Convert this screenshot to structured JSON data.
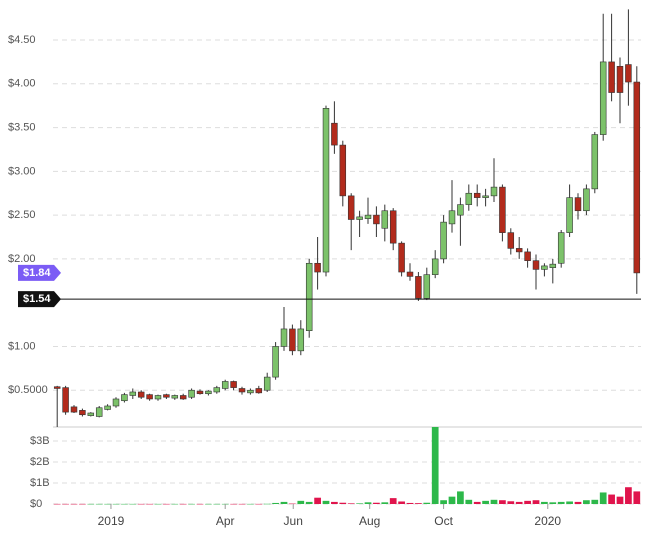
{
  "chart_data": [
    {
      "type": "candlestick",
      "x": [
        0,
        1,
        2,
        3,
        4,
        5,
        6,
        7,
        8,
        9,
        10,
        11,
        12,
        13,
        14,
        15,
        16,
        17,
        18,
        19,
        20,
        21,
        22,
        23,
        24,
        25,
        26,
        27,
        28,
        29,
        30,
        31,
        32,
        33,
        34,
        35,
        36,
        37,
        38,
        39,
        40,
        41,
        42,
        43,
        44,
        45,
        46,
        47,
        48,
        49,
        50,
        51,
        52,
        53,
        54,
        55,
        56,
        57,
        58,
        59,
        60,
        61,
        62,
        63,
        64,
        65,
        66,
        67,
        68,
        69
      ],
      "open": [
        0.54,
        0.53,
        0.31,
        0.27,
        0.21,
        0.2,
        0.28,
        0.32,
        0.38,
        0.44,
        0.48,
        0.45,
        0.4,
        0.45,
        0.41,
        0.44,
        0.42,
        0.49,
        0.46,
        0.48,
        0.52,
        0.6,
        0.52,
        0.47,
        0.52,
        0.5,
        0.65,
        1.0,
        1.2,
        0.95,
        1.18,
        1.95,
        1.85,
        3.55,
        3.3,
        2.72,
        2.45,
        2.46,
        2.5,
        2.35,
        2.55,
        2.18,
        1.85,
        1.8,
        1.55,
        1.82,
        2.0,
        2.4,
        2.5,
        2.62,
        2.75,
        2.7,
        2.72,
        2.82,
        2.3,
        2.12,
        2.08,
        1.98,
        1.88,
        1.9,
        1.95,
        2.3,
        2.7,
        2.55,
        2.8,
        3.42,
        4.25,
        4.2,
        4.22,
        4.02
      ],
      "high": [
        0.55,
        0.55,
        0.33,
        0.29,
        0.25,
        0.32,
        0.34,
        0.42,
        0.47,
        0.52,
        0.5,
        0.46,
        0.45,
        0.46,
        0.45,
        0.46,
        0.52,
        0.51,
        0.5,
        0.55,
        0.62,
        0.61,
        0.54,
        0.52,
        0.55,
        0.7,
        1.05,
        1.45,
        1.25,
        1.3,
        2.0,
        2.25,
        3.75,
        3.8,
        3.35,
        2.75,
        2.55,
        2.7,
        2.6,
        2.62,
        2.58,
        2.2,
        1.95,
        1.85,
        1.9,
        2.1,
        2.5,
        2.9,
        2.7,
        2.85,
        2.85,
        2.8,
        3.15,
        2.85,
        2.35,
        2.25,
        2.12,
        2.05,
        1.95,
        2.0,
        2.33,
        2.85,
        2.75,
        2.85,
        3.45,
        4.8,
        4.8,
        4.3,
        4.85,
        4.2
      ],
      "low": [
        0.08,
        0.22,
        0.24,
        0.2,
        0.2,
        0.19,
        0.27,
        0.3,
        0.36,
        0.4,
        0.4,
        0.38,
        0.38,
        0.4,
        0.39,
        0.39,
        0.4,
        0.45,
        0.44,
        0.46,
        0.5,
        0.5,
        0.45,
        0.45,
        0.46,
        0.48,
        0.62,
        0.95,
        0.9,
        0.9,
        1.1,
        1.65,
        1.8,
        3.2,
        2.6,
        2.1,
        2.25,
        2.4,
        2.25,
        2.2,
        2.1,
        1.8,
        1.75,
        1.52,
        1.53,
        1.78,
        1.95,
        2.3,
        2.15,
        2.55,
        2.6,
        2.6,
        2.65,
        2.2,
        2.05,
        2.0,
        1.9,
        1.65,
        1.8,
        1.72,
        1.9,
        2.25,
        2.45,
        2.5,
        2.75,
        3.35,
        3.8,
        3.55,
        3.75,
        1.6
      ],
      "close": [
        0.52,
        0.25,
        0.25,
        0.22,
        0.24,
        0.3,
        0.32,
        0.4,
        0.45,
        0.48,
        0.42,
        0.4,
        0.44,
        0.42,
        0.44,
        0.4,
        0.5,
        0.46,
        0.49,
        0.53,
        0.6,
        0.53,
        0.48,
        0.5,
        0.47,
        0.65,
        1.0,
        1.2,
        0.95,
        1.2,
        1.95,
        1.85,
        3.72,
        3.3,
        2.72,
        2.45,
        2.48,
        2.5,
        2.4,
        2.55,
        2.18,
        1.85,
        1.8,
        1.55,
        1.82,
        2.0,
        2.42,
        2.55,
        2.62,
        2.75,
        2.7,
        2.72,
        2.82,
        2.3,
        2.12,
        2.08,
        1.98,
        1.88,
        1.92,
        1.94,
        2.3,
        2.7,
        2.55,
        2.8,
        3.42,
        4.25,
        3.9,
        3.9,
        4.02,
        1.84
      ],
      "up_color": "#7cc26a",
      "down_color": "#b22b1c",
      "xlim": [
        -0.5,
        69.5
      ],
      "ylim": [
        0.08,
        4.9
      ],
      "yticks": [
        {
          "value": 0.5,
          "label": "$0.5000"
        },
        {
          "value": 1,
          "label": "$1.00"
        },
        {
          "value": 2,
          "label": "$2.00"
        },
        {
          "value": 2.5,
          "label": "$2.50"
        },
        {
          "value": 3,
          "label": "$3.00"
        },
        {
          "value": 3.5,
          "label": "$3.50"
        },
        {
          "value": 4,
          "label": "$4.00"
        },
        {
          "value": 4.5,
          "label": "$4.50"
        }
      ],
      "grid": true,
      "price_lines": [
        {
          "value": 1.84,
          "label": "$1.84",
          "color": "#7b5cf5",
          "line": false
        },
        {
          "value": 1.54,
          "label": "$1.54",
          "color": "#111111",
          "line": true
        }
      ]
    },
    {
      "type": "bar",
      "x": [
        0,
        1,
        2,
        3,
        4,
        5,
        6,
        7,
        8,
        9,
        10,
        11,
        12,
        13,
        14,
        15,
        16,
        17,
        18,
        19,
        20,
        21,
        22,
        23,
        24,
        25,
        26,
        27,
        28,
        29,
        30,
        31,
        32,
        33,
        34,
        35,
        36,
        37,
        38,
        39,
        40,
        41,
        42,
        43,
        44,
        45,
        46,
        47,
        48,
        49,
        50,
        51,
        52,
        53,
        54,
        55,
        56,
        57,
        58,
        59,
        60,
        61,
        62,
        63,
        64,
        65,
        66,
        67,
        68,
        69
      ],
      "values": [
        5000000,
        5000000,
        5000000,
        5000000,
        5000000,
        5000000,
        5000000,
        5000000,
        5000000,
        5000000,
        5000000,
        5000000,
        5000000,
        5000000,
        5000000,
        5000000,
        5000000,
        5000000,
        5000000,
        5000000,
        5000000,
        5000000,
        5000000,
        5000000,
        5000000,
        10000000,
        50000000,
        100000000,
        20000000,
        150000000,
        100000000,
        300000000,
        150000000,
        100000000,
        60000000,
        30000000,
        30000000,
        80000000,
        60000000,
        80000000,
        280000000,
        120000000,
        50000000,
        40000000,
        60000000,
        3670000000,
        180000000,
        350000000,
        600000000,
        200000000,
        100000000,
        150000000,
        200000000,
        180000000,
        130000000,
        100000000,
        150000000,
        180000000,
        100000000,
        80000000,
        100000000,
        120000000,
        100000000,
        180000000,
        200000000,
        550000000,
        450000000,
        350000000,
        800000000,
        600000000
      ],
      "up_color": "#2db84a",
      "down_color": "#e0144c",
      "xlim": [
        -0.5,
        69.5
      ],
      "ylim": [
        0,
        3670000000
      ],
      "yticks": [
        {
          "value": 0,
          "label": "$0"
        },
        {
          "value": 1000000000,
          "label": "$1B"
        },
        {
          "value": 2000000000,
          "label": "$2B"
        },
        {
          "value": 3000000000,
          "label": "$3B"
        }
      ],
      "xticks": [
        {
          "value": 6.4,
          "label": "2019"
        },
        {
          "value": 20,
          "label": "Apr"
        },
        {
          "value": 28.1,
          "label": "Jun"
        },
        {
          "value": 37.2,
          "label": "Aug"
        },
        {
          "value": 46,
          "label": "Oct"
        },
        {
          "value": 58.4,
          "label": "2020"
        }
      ]
    }
  ]
}
